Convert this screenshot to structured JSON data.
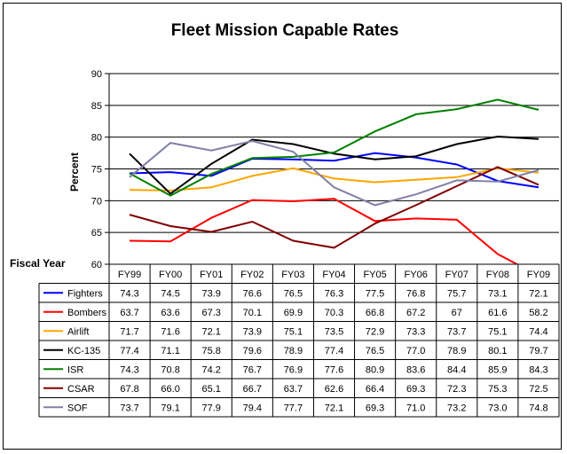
{
  "chart_data": {
    "type": "line",
    "title": "Fleet Mission Capable Rates",
    "ylabel": "Percent",
    "xlabel": "Fiscal Year",
    "ylim": [
      60,
      90
    ],
    "yticks": [
      60,
      65,
      70,
      75,
      80,
      85,
      90
    ],
    "grid": true,
    "legend": "table",
    "categories": [
      "FY99",
      "FY00",
      "FY01",
      "FY02",
      "FY03",
      "FY04",
      "FY05",
      "FY06",
      "FY07",
      "FY08",
      "FY09"
    ],
    "series": [
      {
        "name": "Fighters",
        "color": "#0000ff",
        "values": [
          74.3,
          74.5,
          73.9,
          76.6,
          76.5,
          76.3,
          77.5,
          76.8,
          75.7,
          73.1,
          72.1
        ],
        "labels": [
          "74.3",
          "74.5",
          "73.9",
          "76.6",
          "76.5",
          "76.3",
          "77.5",
          "76.8",
          "75.7",
          "73.1",
          "72.1"
        ]
      },
      {
        "name": "Bombers",
        "color": "#ff0000",
        "values": [
          63.7,
          63.6,
          67.3,
          70.1,
          69.9,
          70.3,
          66.8,
          67.2,
          67,
          61.6,
          58.2
        ],
        "labels": [
          "63.7",
          "63.6",
          "67.3",
          "70.1",
          "69.9",
          "70.3",
          "66.8",
          "67.2",
          "67",
          "61.6",
          "58.2"
        ]
      },
      {
        "name": "Airlift",
        "color": "#ffa500",
        "values": [
          71.7,
          71.6,
          72.1,
          73.9,
          75.1,
          73.5,
          72.9,
          73.3,
          73.7,
          75.1,
          74.4
        ],
        "labels": [
          "71.7",
          "71.6",
          "72.1",
          "73.9",
          "75.1",
          "73.5",
          "72.9",
          "73.3",
          "73.7",
          "75.1",
          "74.4"
        ]
      },
      {
        "name": "KC-135",
        "color": "#000000",
        "values": [
          77.4,
          71.1,
          75.8,
          79.6,
          78.9,
          77.4,
          76.5,
          77.0,
          78.9,
          80.1,
          79.7
        ],
        "labels": [
          "77.4",
          "71.1",
          "75.8",
          "79.6",
          "78.9",
          "77.4",
          "76.5",
          "77.0",
          "78.9",
          "80.1",
          "79.7"
        ]
      },
      {
        "name": "ISR",
        "color": "#008000",
        "values": [
          74.3,
          70.8,
          74.2,
          76.7,
          76.9,
          77.6,
          80.9,
          83.6,
          84.4,
          85.9,
          84.3
        ],
        "labels": [
          "74.3",
          "70.8",
          "74.2",
          "76.7",
          "76.9",
          "77.6",
          "80.9",
          "83.6",
          "84.4",
          "85.9",
          "84.3"
        ]
      },
      {
        "name": "CSAR",
        "color": "#800000",
        "values": [
          67.8,
          66.0,
          65.1,
          66.7,
          63.7,
          62.6,
          66.4,
          69.3,
          72.3,
          75.3,
          72.5
        ],
        "labels": [
          "67.8",
          "66.0",
          "65.1",
          "66.7",
          "63.7",
          "62.6",
          "66.4",
          "69.3",
          "72.3",
          "75.3",
          "72.5"
        ]
      },
      {
        "name": "SOF",
        "color": "#8080a8",
        "values": [
          73.7,
          79.1,
          77.9,
          79.4,
          77.7,
          72.1,
          69.3,
          71.0,
          73.2,
          73.0,
          74.8
        ],
        "labels": [
          "73.7",
          "79.1",
          "77.9",
          "79.4",
          "77.7",
          "72.1",
          "69.3",
          "71.0",
          "73.2",
          "73.0",
          "74.8"
        ]
      }
    ]
  }
}
